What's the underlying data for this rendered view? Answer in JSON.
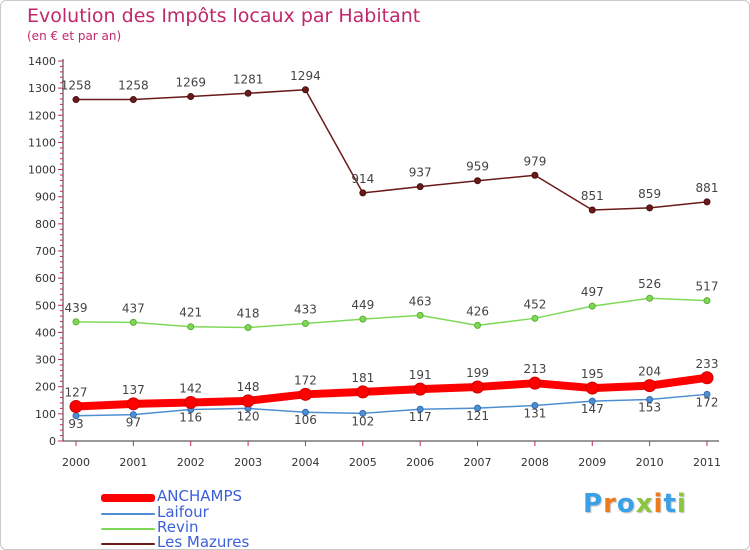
{
  "chart_data": {
    "type": "line",
    "title": "Evolution des Impôts locaux par Habitant",
    "subtitle": "(en € et par an)",
    "xlabel": "",
    "ylabel": "",
    "categories": [
      "2000",
      "2001",
      "2002",
      "2003",
      "2004",
      "2005",
      "2006",
      "2007",
      "2008",
      "2009",
      "2010",
      "2011"
    ],
    "ylim": [
      0,
      1400
    ],
    "yticks": [
      0,
      100,
      200,
      300,
      400,
      500,
      600,
      700,
      800,
      900,
      1000,
      1100,
      1200,
      1300,
      1400
    ],
    "grid": false,
    "legend_position": "bottom-left",
    "series": [
      {
        "name": "Les Mazures",
        "color": "#6b1a1a",
        "values": [
          1258,
          1258,
          1269,
          1281,
          1294,
          914,
          937,
          959,
          979,
          851,
          859,
          881
        ]
      },
      {
        "name": "Revin",
        "color": "#7ed957",
        "values": [
          439,
          437,
          421,
          418,
          433,
          449,
          463,
          426,
          452,
          497,
          526,
          517
        ]
      },
      {
        "name": "Laifour",
        "color": "#4f8fd1",
        "values": [
          93,
          97,
          116,
          120,
          106,
          102,
          117,
          121,
          131,
          147,
          153,
          172
        ]
      },
      {
        "name": "ANCHAMPS",
        "color": "#ff0000",
        "values": [
          127,
          137,
          142,
          148,
          172,
          181,
          191,
          199,
          213,
          195,
          204,
          233
        ]
      }
    ]
  },
  "legend": {
    "items": [
      {
        "label": "ANCHAMPS",
        "color": "#ff0000"
      },
      {
        "label": "Laifour",
        "color": "#4f8fd1"
      },
      {
        "label": "Revin",
        "color": "#7ed957"
      },
      {
        "label": "Les Mazures",
        "color": "#6b1a1a"
      }
    ]
  },
  "logo": {
    "text": "Proxiti",
    "colors": [
      "#3aa0e8",
      "#f07a1a",
      "#3aa0e8",
      "#8cc63e",
      "#f07a1a",
      "#3aa0e8",
      "#8cc63e"
    ]
  }
}
